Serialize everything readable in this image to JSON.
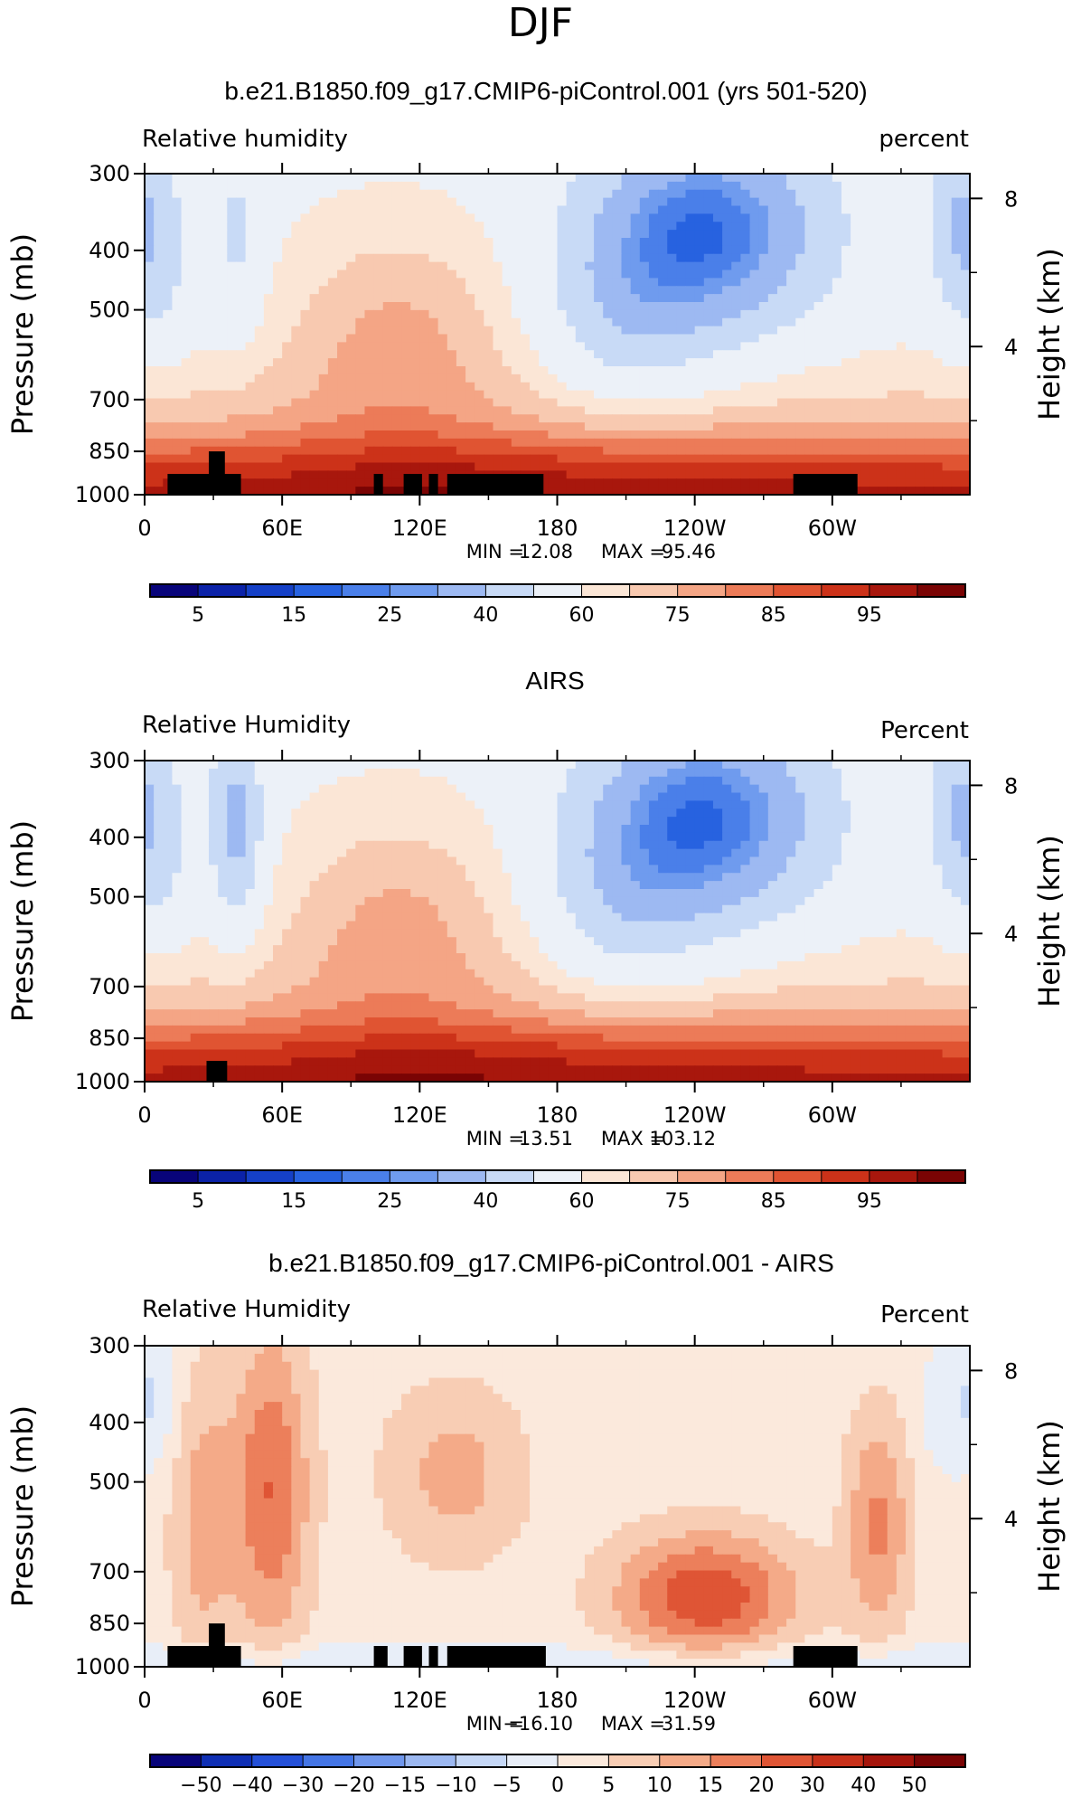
{
  "season": "DJF",
  "chart_data": [
    {
      "type": "heatmap",
      "title": "b.e21.B1850.f09_g17.CMIP6-piControl.001 (yrs 501-520)",
      "variable": "Relative humidity",
      "units": "percent",
      "ylabel": "Pressure (mb)",
      "ylabel_right": "Height (km)",
      "x_ticks": [
        "0",
        "60E",
        "120E",
        "180",
        "120W",
        "60W"
      ],
      "y_ticks": [
        "300",
        "400",
        "500",
        "700",
        "850",
        "1000"
      ],
      "height_ticks": [
        "4",
        "8"
      ],
      "min_label": "MIN =",
      "min": "12.08",
      "max_label": "MAX =",
      "max": "95.46",
      "xlim": [
        0,
        360
      ],
      "ylim": [
        1000,
        300
      ],
      "colorbar_labels": [
        "5",
        "15",
        "25",
        "40",
        "60",
        "75",
        "85",
        "95"
      ],
      "colorbar_levels": [
        5,
        10,
        15,
        20,
        25,
        30,
        40,
        50,
        60,
        65,
        70,
        75,
        80,
        85,
        90,
        95
      ],
      "pattern": {
        "base": 60,
        "humid_boundary_layer": true,
        "dry_upper_centers_lon": [
          5,
          38,
          250,
          350
        ]
      },
      "topography_blocks": [
        {
          "lon0": 10,
          "lon1": 42,
          "p": 925
        },
        {
          "lon0": 28,
          "lon1": 35,
          "p": 850
        },
        {
          "lon0": 100,
          "lon1": 104,
          "p": 925
        },
        {
          "lon0": 113,
          "lon1": 121,
          "p": 925
        },
        {
          "lon0": 124,
          "lon1": 128,
          "p": 925
        },
        {
          "lon0": 132,
          "lon1": 174,
          "p": 925
        },
        {
          "lon0": 283,
          "lon1": 311,
          "p": 925
        }
      ]
    },
    {
      "type": "heatmap",
      "title": "AIRS",
      "variable": "Relative Humidity",
      "units": "Percent",
      "ylabel": "Pressure (mb)",
      "ylabel_right": "Height (km)",
      "x_ticks": [
        "0",
        "60E",
        "120E",
        "180",
        "120W",
        "60W"
      ],
      "y_ticks": [
        "300",
        "400",
        "500",
        "700",
        "850",
        "1000"
      ],
      "height_ticks": [
        "4",
        "8"
      ],
      "min_label": "MIN =",
      "min": "13.51",
      "max_label": "MAX =",
      "max": "103.12",
      "xlim": [
        0,
        360
      ],
      "ylim": [
        1000,
        300
      ],
      "colorbar_labels": [
        "5",
        "15",
        "25",
        "40",
        "60",
        "75",
        "85",
        "95"
      ],
      "colorbar_levels": [
        5,
        10,
        15,
        20,
        25,
        30,
        40,
        50,
        60,
        65,
        70,
        75,
        80,
        85,
        90,
        95
      ],
      "pattern": {
        "base": 55,
        "humid_boundary_layer": true,
        "dry_upper_centers_lon": [
          40,
          255,
          350
        ]
      },
      "topography_blocks": [
        {
          "lon0": 27,
          "lon1": 36,
          "p": 925
        }
      ]
    },
    {
      "type": "heatmap",
      "title": "b.e21.B1850.f09_g17.CMIP6-piControl.001 - AIRS",
      "variable": "Relative Humidity",
      "units": "Percent",
      "ylabel": "Pressure (mb)",
      "ylabel_right": "Height (km)",
      "x_ticks": [
        "0",
        "60E",
        "120E",
        "180",
        "120W",
        "60W"
      ],
      "y_ticks": [
        "300",
        "400",
        "500",
        "700",
        "850",
        "1000"
      ],
      "height_ticks": [
        "4",
        "8"
      ],
      "min_label": "MIN =",
      "min": "−16.10",
      "max_label": "MAX =",
      "max": "31.59",
      "xlim": [
        0,
        360
      ],
      "ylim": [
        1000,
        300
      ],
      "colorbar_labels": [
        "−50",
        "−40",
        "−30",
        "−20",
        "−15",
        "−10",
        "−5",
        "0",
        "5",
        "10",
        "15",
        "20",
        "30",
        "40",
        "50"
      ],
      "colorbar_levels": [
        -50,
        -40,
        -30,
        -20,
        -15,
        -10,
        -5,
        0,
        5,
        10,
        15,
        20,
        30,
        40,
        50
      ],
      "pattern": {
        "base": 3,
        "positive_centers_lon": [
          50,
          140,
          240,
          315
        ]
      },
      "topography_blocks": [
        {
          "lon0": 10,
          "lon1": 42,
          "p": 925
        },
        {
          "lon0": 28,
          "lon1": 35,
          "p": 850
        },
        {
          "lon0": 100,
          "lon1": 106,
          "p": 925
        },
        {
          "lon0": 113,
          "lon1": 121,
          "p": 925
        },
        {
          "lon0": 124,
          "lon1": 128,
          "p": 925
        },
        {
          "lon0": 132,
          "lon1": 175,
          "p": 925
        },
        {
          "lon0": 283,
          "lon1": 311,
          "p": 925
        }
      ]
    }
  ],
  "colormap": [
    "#08047a",
    "#0b22a8",
    "#1540c7",
    "#2762e0",
    "#4a7fe9",
    "#6f9bee",
    "#9db9f2",
    "#c8daf6",
    "#ecf1f8",
    "#fbe6d6",
    "#f8c9b0",
    "#f4a585",
    "#ec7b58",
    "#e05432",
    "#cc3219",
    "#a8170d",
    "#7a0404"
  ],
  "colormap_diff": [
    "#08047a",
    "#0f2fb4",
    "#2450d8",
    "#4475e5",
    "#7097ec",
    "#9cb8f1",
    "#c5d7f6",
    "#e8eef8",
    "#fbe9dc",
    "#f8cdb4",
    "#f4aa88",
    "#ec7f5b",
    "#df5535",
    "#c8311a",
    "#a5150c",
    "#7a0404"
  ]
}
